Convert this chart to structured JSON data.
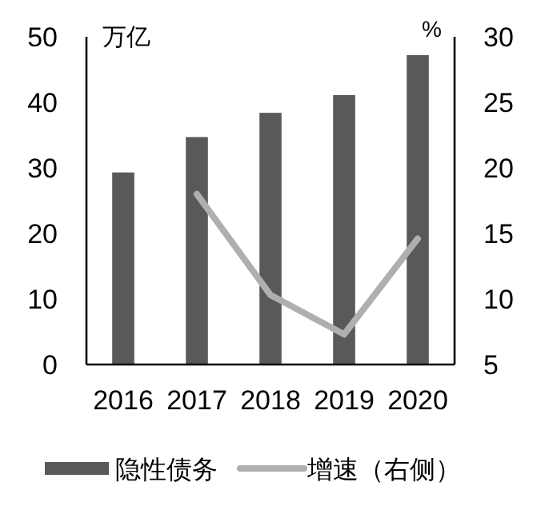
{
  "chart_data": {
    "type": "bar",
    "categories": [
      "2016",
      "2017",
      "2018",
      "2019",
      "2020"
    ],
    "ylabel": "万亿",
    "y2label": "%",
    "ylim": [
      0,
      50
    ],
    "yticks": [
      0,
      10,
      20,
      30,
      40,
      50
    ],
    "y2lim": [
      5,
      30
    ],
    "y2ticks": [
      5,
      10,
      15,
      20,
      25,
      30
    ],
    "series": [
      {
        "name": "隐性债务",
        "color": "#595959",
        "values": [
          29.3,
          34.7,
          38.4,
          41.1,
          47.2
        ]
      },
      {
        "name": "增速（右侧）",
        "type": "line",
        "axis": "y2",
        "color": "#afafaf",
        "values": [
          null,
          18.0,
          10.3,
          7.3,
          14.6
        ]
      }
    ],
    "grid": false,
    "legend": "bottom"
  }
}
